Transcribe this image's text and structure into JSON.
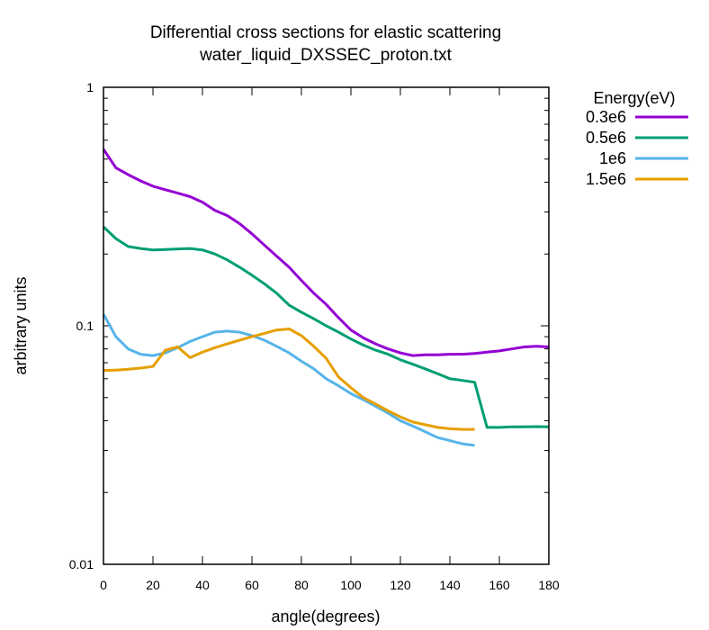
{
  "chart_data": {
    "type": "line",
    "title": "Differential cross sections for elastic scattering",
    "subtitle": "water_liquid_DXSSEC_proton.txt",
    "xlabel": "angle(degrees)",
    "ylabel": "arbitrary units",
    "xlim": [
      0,
      180
    ],
    "ylim": [
      0.01,
      1
    ],
    "yscale": "log",
    "x_ticks": [
      0,
      20,
      40,
      60,
      80,
      100,
      120,
      140,
      160,
      180
    ],
    "x_tick_labels": [
      "0",
      "20",
      "40",
      "60",
      "80",
      "100",
      "120",
      "140",
      "160",
      "180"
    ],
    "y_ticks": [
      0.01,
      0.1,
      1
    ],
    "y_tick_labels": [
      "0.01",
      "0.1",
      "1"
    ],
    "grid": false,
    "legend_title": "Energy(eV)",
    "legend_position": "outside-top-right",
    "series": [
      {
        "name": "0.3e6",
        "color": "#9400d3",
        "x": [
          0,
          5,
          10,
          15,
          20,
          25,
          30,
          35,
          40,
          45,
          50,
          55,
          60,
          65,
          70,
          75,
          80,
          85,
          90,
          95,
          100,
          105,
          110,
          115,
          120,
          125,
          130,
          135,
          140,
          145,
          150,
          155,
          160,
          165,
          170,
          175,
          180
        ],
        "y": [
          0.55,
          0.46,
          0.43,
          0.405,
          0.385,
          0.372,
          0.36,
          0.348,
          0.33,
          0.305,
          0.29,
          0.268,
          0.243,
          0.218,
          0.196,
          0.176,
          0.155,
          0.137,
          0.123,
          0.108,
          0.096,
          0.089,
          0.084,
          0.08,
          0.077,
          0.075,
          0.0755,
          0.0755,
          0.076,
          0.076,
          0.0765,
          0.0775,
          0.0785,
          0.08,
          0.0815,
          0.082,
          0.0815
        ]
      },
      {
        "name": "0.5e6",
        "color": "#009e73",
        "x": [
          0,
          5,
          10,
          15,
          20,
          25,
          30,
          35,
          40,
          45,
          50,
          55,
          60,
          65,
          70,
          75,
          80,
          85,
          90,
          95,
          100,
          105,
          110,
          115,
          120,
          125,
          130,
          135,
          140,
          145,
          150,
          155,
          160,
          165,
          170,
          175,
          180
        ],
        "y": [
          0.26,
          0.232,
          0.215,
          0.211,
          0.208,
          0.209,
          0.21,
          0.211,
          0.208,
          0.2,
          0.189,
          0.176,
          0.163,
          0.15,
          0.137,
          0.122,
          0.114,
          0.107,
          0.1,
          0.094,
          0.088,
          0.083,
          0.079,
          0.076,
          0.072,
          0.069,
          0.066,
          0.063,
          0.06,
          0.059,
          0.058,
          0.0375,
          0.0375,
          0.0377,
          0.0377,
          0.0378,
          0.0377
        ]
      },
      {
        "name": "1e6",
        "color": "#56b4e9",
        "x": [
          0,
          5,
          10,
          15,
          20,
          25,
          30,
          35,
          40,
          45,
          50,
          55,
          60,
          65,
          70,
          75,
          80,
          85,
          90,
          95,
          100,
          105,
          110,
          115,
          120,
          125,
          130,
          135,
          140,
          145,
          150
        ],
        "y": [
          0.112,
          0.09,
          0.08,
          0.076,
          0.075,
          0.077,
          0.081,
          0.086,
          0.09,
          0.094,
          0.095,
          0.094,
          0.091,
          0.087,
          0.082,
          0.077,
          0.071,
          0.066,
          0.06,
          0.056,
          0.052,
          0.049,
          0.046,
          0.043,
          0.04,
          0.038,
          0.036,
          0.034,
          0.033,
          0.032,
          0.0315
        ]
      },
      {
        "name": "1.5e6",
        "color": "#e69f00",
        "x": [
          0,
          5,
          10,
          15,
          20,
          25,
          30,
          35,
          40,
          45,
          50,
          55,
          60,
          65,
          70,
          75,
          80,
          85,
          90,
          95,
          100,
          105,
          110,
          115,
          120,
          125,
          130,
          135,
          140,
          145,
          150
        ],
        "y": [
          0.065,
          0.0652,
          0.0658,
          0.0665,
          0.0675,
          0.079,
          0.0815,
          0.0735,
          0.0775,
          0.081,
          0.084,
          0.087,
          0.09,
          0.093,
          0.096,
          0.097,
          0.091,
          0.082,
          0.073,
          0.061,
          0.055,
          0.05,
          0.047,
          0.044,
          0.0415,
          0.0395,
          0.0385,
          0.0375,
          0.037,
          0.0368,
          0.0368
        ]
      }
    ]
  }
}
